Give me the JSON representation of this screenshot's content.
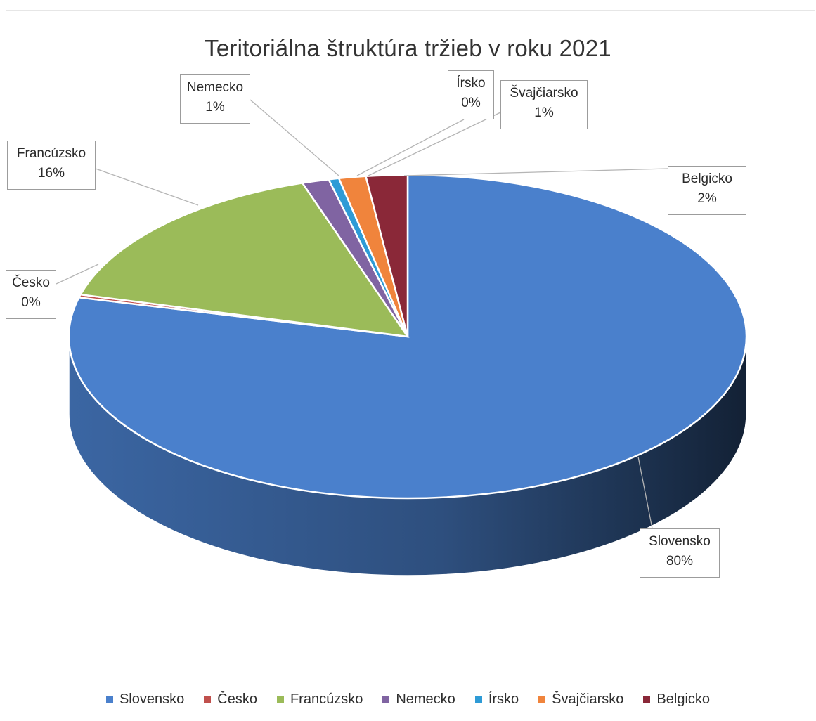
{
  "chart_data": {
    "type": "pie",
    "style": "3d",
    "title": "Teritoriálna štruktúra tržieb v roku 2021",
    "categories": [
      "Slovensko",
      "Česko",
      "Francúzsko",
      "Nemecko",
      "Írsko",
      "Švajčiarsko",
      "Belgicko"
    ],
    "values": [
      80,
      0.3,
      16,
      1.3,
      0.5,
      1.3,
      2
    ],
    "labels": [
      "80%",
      "0%",
      "16%",
      "1%",
      "0%",
      "1%",
      "2%"
    ],
    "colors": [
      "#4a80cc",
      "#c0504d",
      "#9bbb59",
      "#8064a2",
      "#2e9bd6",
      "#f0843c",
      "#8a2838"
    ],
    "legend_position": "bottom"
  }
}
